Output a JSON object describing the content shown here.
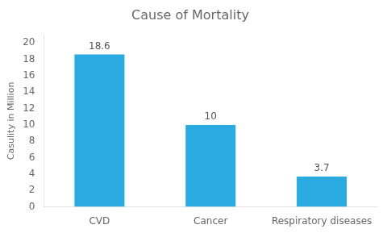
{
  "chart_data": {
    "type": "bar",
    "title": "Cause of Mortality",
    "categories": [
      "CVD",
      "Cancer",
      "Respiratory diseases"
    ],
    "values": [
      18.6,
      10,
      3.7
    ],
    "color": "#29ABE2",
    "ylabel": "Casulity in Million",
    "ylim": [
      0,
      21
    ],
    "yticks": [
      0,
      2,
      4,
      6,
      8,
      10,
      12,
      14,
      16,
      18,
      20
    ],
    "grid": false,
    "data_labels": true
  }
}
